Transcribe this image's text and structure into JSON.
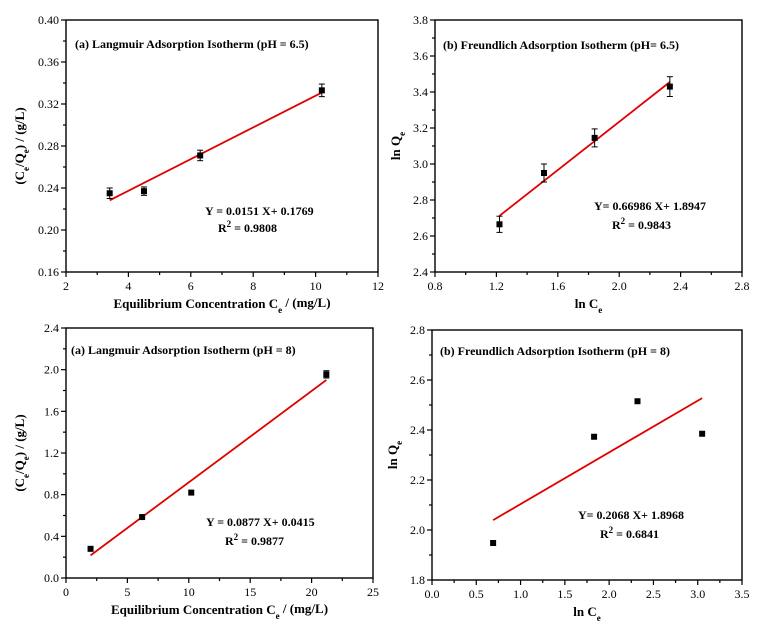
{
  "chart_data": [
    {
      "type": "scatter",
      "title": "(a)  Langmuir Adsorption Isotherm (pH = 6.5)",
      "xlabel": {
        "main": "Equilibrium Concentration C",
        "sub": "e",
        "suffix": " / (mg/L)"
      },
      "ylabel": {
        "parts": [
          [
            "(C",
            ""
          ],
          [
            "e",
            "sub"
          ],
          [
            "/Q",
            ""
          ],
          [
            "e",
            "sub"
          ],
          [
            ") / (g/L)",
            ""
          ]
        ]
      },
      "xlim": [
        2,
        12
      ],
      "ylim": [
        0.16,
        0.4
      ],
      "xticks": [
        "2",
        "4",
        "6",
        "8",
        "10",
        "12"
      ],
      "yticks": [
        "0.16",
        "0.20",
        "0.24",
        "0.28",
        "0.32",
        "0.36",
        "0.40"
      ],
      "points": [
        {
          "x": 3.4,
          "y": 0.235,
          "err": 0.005
        },
        {
          "x": 4.5,
          "y": 0.237,
          "err": 0.004
        },
        {
          "x": 6.3,
          "y": 0.271,
          "err": 0.005
        },
        {
          "x": 10.2,
          "y": 0.333,
          "err": 0.006
        }
      ],
      "fit": {
        "slope": 0.0151,
        "intercept": 0.1769,
        "x_range": [
          3.4,
          10.2
        ]
      },
      "equation": "Y = 0.0151 X+ 0.1769",
      "r2_value": " = 0.9808"
    },
    {
      "type": "scatter",
      "title": "(b) Freundlich Adsorption Isotherm (pH= 6.5)",
      "xlabel": {
        "main": "ln C",
        "sub": "e",
        "suffix": ""
      },
      "ylabel": {
        "parts": [
          [
            "ln Q",
            ""
          ],
          [
            "e",
            "sub"
          ]
        ]
      },
      "xlim": [
        0.8,
        2.8
      ],
      "ylim": [
        2.4,
        3.8
      ],
      "xticks": [
        "0.8",
        "1.2",
        "1.6",
        "2.0",
        "2.4",
        "2.8"
      ],
      "yticks": [
        "2.4",
        "2.6",
        "2.8",
        "3.0",
        "3.2",
        "3.4",
        "3.6",
        "3.8"
      ],
      "points": [
        {
          "x": 1.22,
          "y": 2.665,
          "err": 0.045
        },
        {
          "x": 1.51,
          "y": 2.95,
          "err": 0.05
        },
        {
          "x": 1.84,
          "y": 3.145,
          "err": 0.05
        },
        {
          "x": 2.33,
          "y": 3.43,
          "err": 0.055
        }
      ],
      "fit": {
        "slope": 0.66986,
        "intercept": 1.8947,
        "x_range": [
          1.22,
          2.33
        ]
      },
      "equation": "Y= 0.66986 X+ 1.8947",
      "r2_value": " = 0.9843"
    },
    {
      "type": "scatter",
      "title": "(a)  Langmuir Adsorption Isotherm (pH = 8)",
      "xlabel": {
        "main": "Equilibrium Concentration C",
        "sub": "e",
        "suffix": " / (mg/L)"
      },
      "ylabel": {
        "parts": [
          [
            "(C",
            ""
          ],
          [
            "e",
            "sub"
          ],
          [
            "/Q",
            ""
          ],
          [
            "e",
            "sub"
          ],
          [
            ") / (g/L)",
            ""
          ]
        ]
      },
      "xlim": [
        0,
        25
      ],
      "ylim": [
        0,
        2.4
      ],
      "xticks": [
        "0",
        "5",
        "10",
        "15",
        "20",
        "25"
      ],
      "yticks": [
        "0.0",
        "0.4",
        "0.8",
        "1.2",
        "1.6",
        "2.0",
        "2.4"
      ],
      "points": [
        {
          "x": 2.0,
          "y": 0.28,
          "err": 0.0
        },
        {
          "x": 6.2,
          "y": 0.585,
          "err": 0.0
        },
        {
          "x": 10.2,
          "y": 0.82,
          "err": 0.0
        },
        {
          "x": 21.2,
          "y": 1.955,
          "err": 0.035
        }
      ],
      "fit": {
        "slope": 0.0877,
        "intercept": 0.0415,
        "x_range": [
          2.0,
          21.2
        ]
      },
      "equation": "Y = 0.0877 X+ 0.0415",
      "r2_value": " = 0.9877"
    },
    {
      "type": "scatter",
      "title": "(b) Freundlich Adsorption Isotherm (pH = 8)",
      "xlabel": {
        "main": "ln C",
        "sub": "e",
        "suffix": ""
      },
      "ylabel": {
        "parts": [
          [
            "ln Q",
            ""
          ],
          [
            "e",
            "sub"
          ]
        ]
      },
      "xlim": [
        0,
        3.5
      ],
      "ylim": [
        1.8,
        2.8
      ],
      "xticks": [
        "0.0",
        "0.5",
        "1.0",
        "1.5",
        "2.0",
        "2.5",
        "3.0",
        "3.5"
      ],
      "yticks": [
        "1.8",
        "2.0",
        "2.2",
        "2.4",
        "2.6",
        "2.8"
      ],
      "points": [
        {
          "x": 0.69,
          "y": 1.948,
          "err": 0.0
        },
        {
          "x": 1.83,
          "y": 2.373,
          "err": 0.0
        },
        {
          "x": 2.32,
          "y": 2.515,
          "err": 0.0
        },
        {
          "x": 3.05,
          "y": 2.385,
          "err": 0.0
        }
      ],
      "fit": {
        "slope": 0.2068,
        "intercept": 1.8968,
        "x_range": [
          0.69,
          3.05
        ]
      },
      "equation": "Y= 0.2068 X+ 1.8968",
      "r2_value": " = 0.6841"
    }
  ],
  "style": {
    "fit_color": "#e00000",
    "marker_color": "#000000",
    "axis_color": "#000000"
  }
}
